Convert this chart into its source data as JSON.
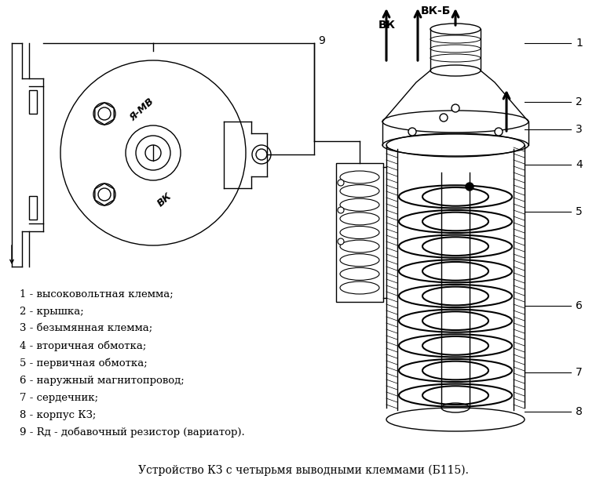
{
  "title": "Устройство КЗ с четырьмя выводными клеммами (Б115).",
  "bg_color": "#ffffff",
  "line_color": "#000000",
  "legend": [
    "1 - высоковольтная клемма;",
    "2 - крышка;",
    "3 - безымянная клемма;",
    "4 - вторичная обмотка;",
    "5 - первичная обмотка;",
    "6 - наружный магнитопровод;",
    "7 - сердечник;",
    "8 - корпус КЗ;",
    "9 - Rд - добавочный резистор (вариатор)."
  ]
}
